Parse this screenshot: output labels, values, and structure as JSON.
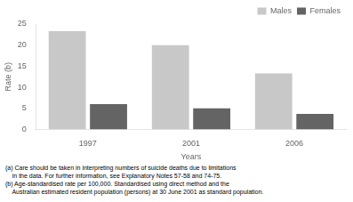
{
  "chart_data": {
    "type": "bar",
    "categories": [
      "1997",
      "2001",
      "2006"
    ],
    "series": [
      {
        "name": "Males",
        "color": "#c8c8c8",
        "values": [
          23.3,
          20.0,
          13.3
        ]
      },
      {
        "name": "Females",
        "color": "#646464",
        "values": [
          6.0,
          5.0,
          3.7
        ]
      }
    ],
    "xlabel": "Years",
    "ylabel": "Rate (b)",
    "ylim": [
      0,
      25
    ],
    "yticks": [
      0,
      5,
      10,
      15,
      20,
      25
    ],
    "grid": false,
    "legend": "upper right",
    "annotations": [
      "(a) Care should be taken in interpreting numbers of suicide deaths due to limitations",
      "    in the data. For further information, see Explanatory Notes 57-58 and 74-75.",
      "(b) Age-standardised rate per 100,000. Standardised using direct method and the",
      "    Australian estimated resident population (persons) at 30 June 2001 as standard population."
    ]
  }
}
